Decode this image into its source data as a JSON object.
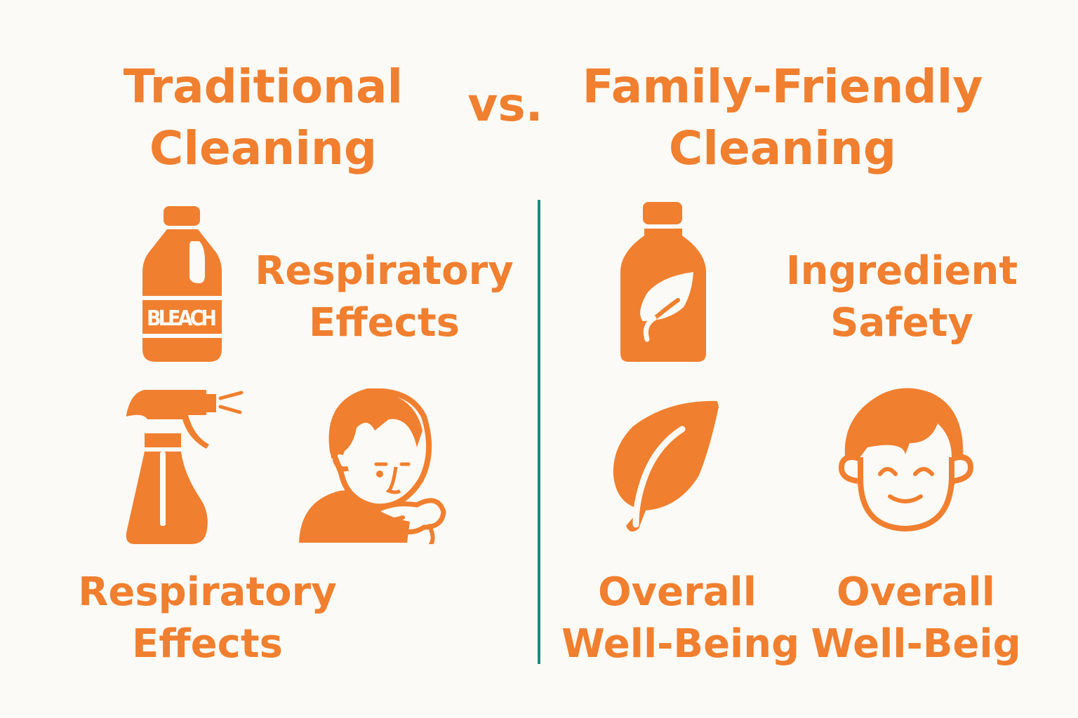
{
  "left": {
    "title_line1": "Traditional",
    "title_line2": "Cleaning",
    "bleach_label": "BLEACH",
    "label_top_line1": "Respiratory",
    "label_top_line2": "Effects",
    "label_bottom_line1": "Respiratory",
    "label_bottom_line2": "Effects",
    "icons": [
      "bleach-bottle-icon",
      "spray-bottle-icon",
      "coughing-person-icon"
    ]
  },
  "vs": "vs.",
  "right": {
    "title_line1": "Family-Friendly",
    "title_line2": "Cleaning",
    "label_top_line1": "Ingredient",
    "label_top_line2": "Safety",
    "label_bottom_left_line1": "Overall",
    "label_bottom_left_line2": "Well-Being",
    "label_bottom_right_line1": "Overall",
    "label_bottom_right_line2": "Well-Beig",
    "icons": [
      "eco-bottle-icon",
      "leaf-icon",
      "happy-child-icon"
    ]
  },
  "colors": {
    "accent": "#F07F2F",
    "divider": "#1E8C7E",
    "background": "#FBFAF6"
  }
}
